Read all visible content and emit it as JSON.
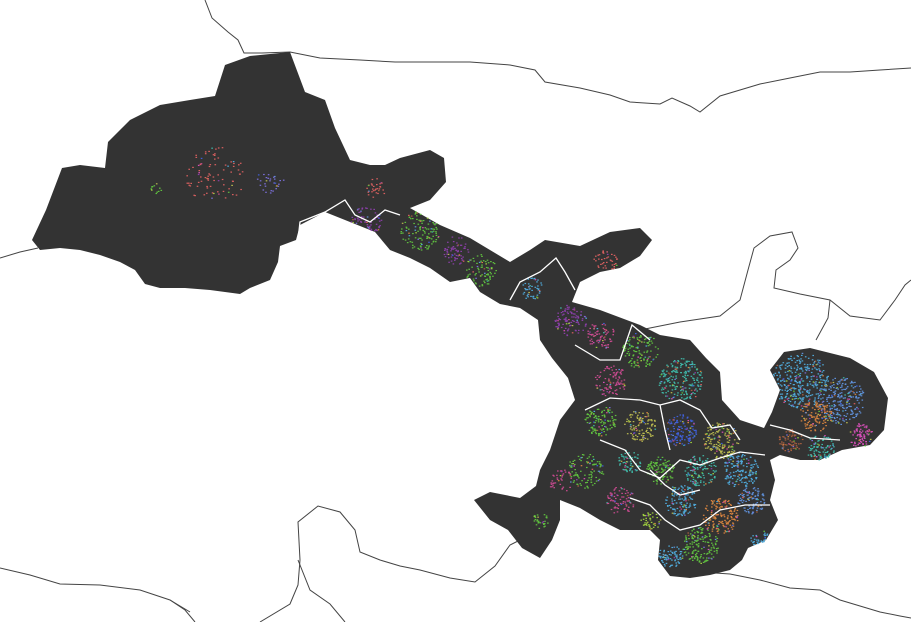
{
  "map": {
    "region_fill": "#333333",
    "border_color": "#444444",
    "inner_boundary_color": "#ffffff",
    "background": "#ffffff",
    "palette": [
      "#8a3fa8",
      "#c94a8f",
      "#4fa8d8",
      "#5fbf3f",
      "#3f5fd8",
      "#d8843f",
      "#b8b84f",
      "#3fb8a8",
      "#d85f5f",
      "#7a6fd8",
      "#a85f3f",
      "#5f8fd8",
      "#9fcf3f",
      "#d84fb8"
    ]
  }
}
